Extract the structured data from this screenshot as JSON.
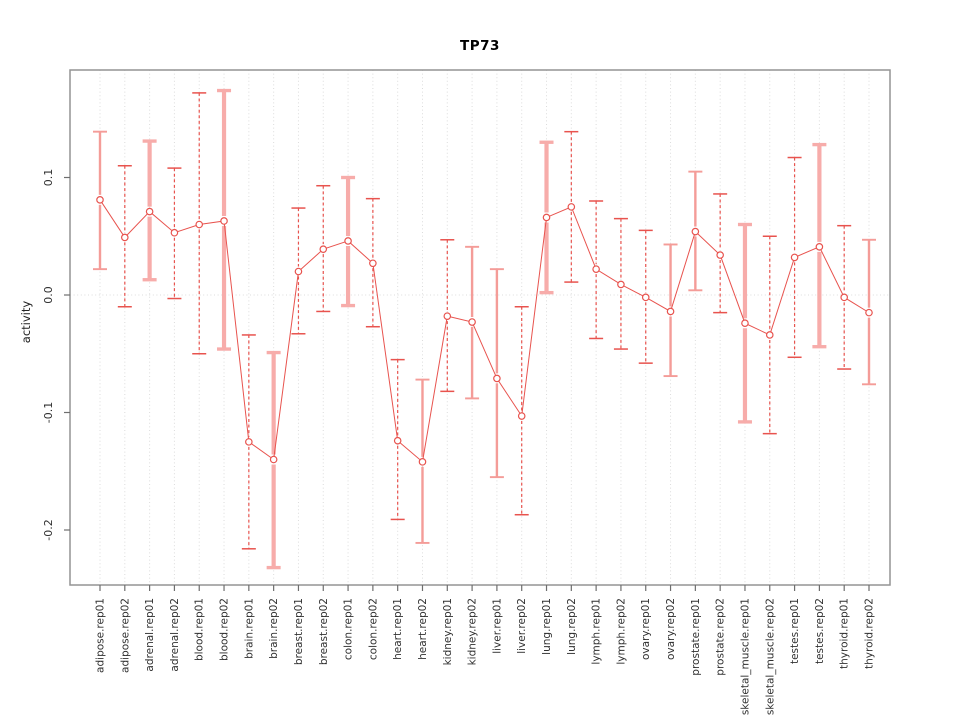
{
  "page": {
    "title": "TP73"
  },
  "chart_data": {
    "type": "line",
    "subtype": "points-with-error-bars",
    "title": "TP73",
    "xlabel": "",
    "ylabel": "activity",
    "legend": "none",
    "grid": "vertical dotted gridline at every category; dotted horizontal line at y=0",
    "ylim": [
      -0.247,
      0.192
    ],
    "yticks": {
      "labels": [
        "0.1",
        "0.0",
        "-0.1",
        "-0.2"
      ],
      "values": [
        0.1,
        0.0,
        -0.1,
        -0.2
      ]
    },
    "categories": [
      "adipose.rep01",
      "adipose.rep02",
      "adrenal.rep01",
      "adrenal.rep02",
      "blood.rep01",
      "blood.rep02",
      "brain.rep01",
      "brain.rep02",
      "breast.rep01",
      "breast.rep02",
      "colon.rep01",
      "colon.rep02",
      "heart.rep01",
      "heart.rep02",
      "kidney.rep01",
      "kidney.rep02",
      "liver.rep01",
      "liver.rep02",
      "lung.rep01",
      "lung.rep02",
      "lymph.rep01",
      "lymph.rep02",
      "ovary.rep01",
      "ovary.rep02",
      "prostate.rep01",
      "prostate.rep02",
      "skeletal_muscle.rep01",
      "skeletal_muscle.rep02",
      "testes.rep01",
      "testes.rep02",
      "thyroid.rep01",
      "thyroid.rep02"
    ],
    "series": [
      {
        "name": "activity",
        "values": [
          0.081,
          0.049,
          0.071,
          0.053,
          0.06,
          0.063,
          -0.125,
          -0.14,
          0.02,
          0.039,
          0.046,
          0.027,
          -0.124,
          -0.142,
          -0.018,
          -0.023,
          -0.071,
          -0.103,
          0.066,
          0.075,
          0.022,
          0.009,
          -0.002,
          -0.014,
          0.054,
          0.034,
          -0.024,
          -0.034,
          0.032,
          0.041,
          -0.002,
          -0.015
        ],
        "ci_low": [
          0.022,
          -0.01,
          0.013,
          -0.003,
          -0.05,
          -0.046,
          -0.216,
          -0.232,
          -0.033,
          -0.014,
          -0.009,
          -0.027,
          -0.191,
          -0.211,
          -0.082,
          -0.088,
          -0.155,
          -0.187,
          0.002,
          0.011,
          -0.037,
          -0.046,
          -0.058,
          -0.069,
          0.004,
          -0.015,
          -0.108,
          -0.118,
          -0.053,
          -0.044,
          -0.063,
          -0.076
        ],
        "ci_high": [
          0.139,
          0.11,
          0.131,
          0.108,
          0.172,
          0.174,
          -0.034,
          -0.049,
          0.074,
          0.093,
          0.1,
          0.082,
          -0.055,
          -0.072,
          0.047,
          0.041,
          0.022,
          -0.01,
          0.13,
          0.139,
          0.08,
          0.065,
          0.055,
          0.043,
          0.105,
          0.086,
          0.06,
          0.05,
          0.117,
          0.128,
          0.059,
          0.047
        ],
        "bar_styles": [
          "solid",
          "dashed",
          "thick",
          "dashed",
          "dashed",
          "thick",
          "dashed",
          "thick",
          "dashed",
          "dashed",
          "thick",
          "dashed",
          "dashed",
          "solid",
          "dashed",
          "solid",
          "solid",
          "dashed",
          "thick",
          "dashed",
          "dashed",
          "dashed",
          "dashed",
          "solid",
          "solid",
          "dashed",
          "thick",
          "dashed",
          "dashed",
          "thick",
          "dashed",
          "solid"
        ]
      }
    ],
    "colors": {
      "point": "#e8534e",
      "line": "#e8534e",
      "bar_dashed": "#e8534e",
      "bar_solid": "#f49c98",
      "bar_thick": "#f7acaa",
      "grid": "#dcdcdc",
      "zero_line": "#dcdcdc",
      "box": "#949494",
      "tick": "#6e6e6e",
      "tick_label": "#303030",
      "title": "#000000"
    }
  }
}
